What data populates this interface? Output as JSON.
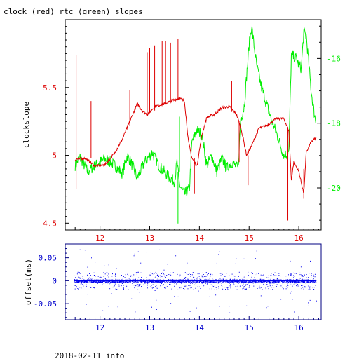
{
  "chart_data": [
    {
      "type": "line",
      "title": "clock (red) rtc (green) slopes",
      "xlabel": "",
      "ylabel": "clockslope",
      "xlim": [
        11.3,
        16.45
      ],
      "ylim": [
        4.45,
        6.0
      ],
      "y2lim": [
        -21.3,
        -14.8
      ],
      "grid": false,
      "x_ticks": [
        "12",
        "13",
        "14",
        "15",
        "16"
      ],
      "y_ticks": [
        "4.5",
        "5",
        "5.5"
      ],
      "y2_ticks": [
        "-16",
        "-18",
        "-20"
      ],
      "colors": {
        "clock": "#dd0000",
        "rtc": "#00ee00",
        "axis": "#000000"
      },
      "series": [
        {
          "name": "clock",
          "axis": "left",
          "points": [
            [
              11.5,
              4.97
            ],
            [
              11.7,
              4.98
            ],
            [
              11.9,
              4.92
            ],
            [
              12.1,
              4.93
            ],
            [
              12.3,
              5.02
            ],
            [
              12.45,
              5.12
            ],
            [
              12.6,
              5.25
            ],
            [
              12.75,
              5.38
            ],
            [
              12.85,
              5.33
            ],
            [
              12.95,
              5.3
            ],
            [
              13.1,
              5.36
            ],
            [
              13.3,
              5.38
            ],
            [
              13.5,
              5.41
            ],
            [
              13.6,
              5.42
            ],
            [
              13.7,
              5.4
            ],
            [
              13.78,
              5.1
            ],
            [
              13.85,
              4.98
            ],
            [
              13.95,
              4.92
            ],
            [
              14.05,
              5.15
            ],
            [
              14.15,
              5.28
            ],
            [
              14.3,
              5.3
            ],
            [
              14.45,
              5.35
            ],
            [
              14.6,
              5.36
            ],
            [
              14.75,
              5.3
            ],
            [
              14.85,
              5.18
            ],
            [
              14.95,
              5.0
            ],
            [
              15.05,
              5.07
            ],
            [
              15.2,
              5.2
            ],
            [
              15.35,
              5.22
            ],
            [
              15.55,
              5.27
            ],
            [
              15.7,
              5.27
            ],
            [
              15.8,
              5.18
            ],
            [
              15.85,
              4.82
            ],
            [
              15.9,
              4.95
            ],
            [
              16.0,
              4.88
            ],
            [
              16.1,
              4.72
            ],
            [
              16.15,
              5.02
            ],
            [
              16.25,
              5.1
            ],
            [
              16.35,
              5.13
            ]
          ],
          "spikes": [
            {
              "x": 11.52,
              "y": 4.75,
              "peak": 5.74
            },
            {
              "x": 11.82,
              "y": 4.98,
              "peak": 5.4
            },
            {
              "x": 12.6,
              "y": 5.22,
              "peak": 5.48
            },
            {
              "x": 12.95,
              "y": 5.3,
              "peak": 5.76
            },
            {
              "x": 13.0,
              "y": 5.31,
              "peak": 5.79
            },
            {
              "x": 13.1,
              "y": 5.33,
              "peak": 5.81
            },
            {
              "x": 13.25,
              "y": 5.37,
              "peak": 5.84
            },
            {
              "x": 13.32,
              "y": 5.38,
              "peak": 5.84
            },
            {
              "x": 13.42,
              "y": 5.4,
              "peak": 5.83
            },
            {
              "x": 13.57,
              "y": 5.41,
              "peak": 5.86
            },
            {
              "x": 13.9,
              "y": 4.98,
              "peak": 4.72
            },
            {
              "x": 14.65,
              "y": 5.32,
              "peak": 5.55
            },
            {
              "x": 14.8,
              "y": 5.25,
              "peak": 4.95
            },
            {
              "x": 14.98,
              "y": 5.0,
              "peak": 4.78
            },
            {
              "x": 15.78,
              "y": 5.2,
              "peak": 4.52
            },
            {
              "x": 16.1,
              "y": 4.9,
              "peak": 4.68
            }
          ]
        },
        {
          "name": "rtc",
          "axis": "right",
          "points": [
            [
              11.5,
              -19.3
            ],
            [
              11.6,
              -19.05
            ],
            [
              11.75,
              -19.5
            ],
            [
              11.95,
              -19.25
            ],
            [
              12.1,
              -19.1
            ],
            [
              12.3,
              -19.3
            ],
            [
              12.45,
              -19.55
            ],
            [
              12.55,
              -19.0
            ],
            [
              12.65,
              -19.3
            ],
            [
              12.75,
              -19.7
            ],
            [
              12.9,
              -19.2
            ],
            [
              13.05,
              -18.9
            ],
            [
              13.2,
              -19.35
            ],
            [
              13.35,
              -19.6
            ],
            [
              13.5,
              -19.8
            ],
            [
              13.55,
              -19.2
            ],
            [
              13.6,
              -19.9
            ],
            [
              13.7,
              -20.2
            ],
            [
              13.8,
              -20.0
            ],
            [
              13.85,
              -18.6
            ],
            [
              13.95,
              -18.2
            ],
            [
              14.05,
              -18.35
            ],
            [
              14.15,
              -19.3
            ],
            [
              14.25,
              -19.0
            ],
            [
              14.35,
              -19.5
            ],
            [
              14.45,
              -19.1
            ],
            [
              14.55,
              -19.4
            ],
            [
              14.65,
              -19.2
            ],
            [
              14.78,
              -19.4
            ],
            [
              14.83,
              -17.9
            ],
            [
              14.9,
              -17.5
            ],
            [
              15.0,
              -15.6
            ],
            [
              15.05,
              -15.0
            ],
            [
              15.15,
              -16.2
            ],
            [
              15.25,
              -16.9
            ],
            [
              15.35,
              -17.4
            ],
            [
              15.45,
              -17.9
            ],
            [
              15.55,
              -18.3
            ],
            [
              15.7,
              -19.0
            ],
            [
              15.8,
              -18.9
            ],
            [
              15.85,
              -15.9
            ],
            [
              15.95,
              -16.0
            ],
            [
              16.0,
              -16.2
            ],
            [
              16.05,
              -16.3
            ],
            [
              16.1,
              -15.2
            ],
            [
              16.15,
              -15.3
            ],
            [
              16.25,
              -17.0
            ],
            [
              16.3,
              -17.6
            ],
            [
              16.35,
              -18.0
            ]
          ],
          "spikes": [
            {
              "x": 13.57,
              "y": -19.5,
              "peak": -21.1
            },
            {
              "x": 13.6,
              "y": -19.5,
              "peak": -17.8
            }
          ]
        }
      ]
    },
    {
      "type": "scatter",
      "title": "",
      "xlabel": "",
      "ylabel": "offset(ms)",
      "xlim": [
        11.3,
        16.45
      ],
      "ylim": [
        -0.085,
        0.08
      ],
      "grid": false,
      "x_ticks": [
        "12",
        "13",
        "14",
        "15",
        "16"
      ],
      "y_ticks": [
        "0.05",
        "0",
        "-0.05"
      ],
      "colors": {
        "points": "#0000ee",
        "axis": "#000080"
      },
      "series": [
        {
          "name": "offset",
          "x_range": [
            11.47,
            16.35
          ],
          "baseline": 0.0,
          "typical_spread": 0.012,
          "max_outlier": 0.07
        }
      ]
    }
  ],
  "footer": {
    "date_info": "2018-02-11 info"
  }
}
